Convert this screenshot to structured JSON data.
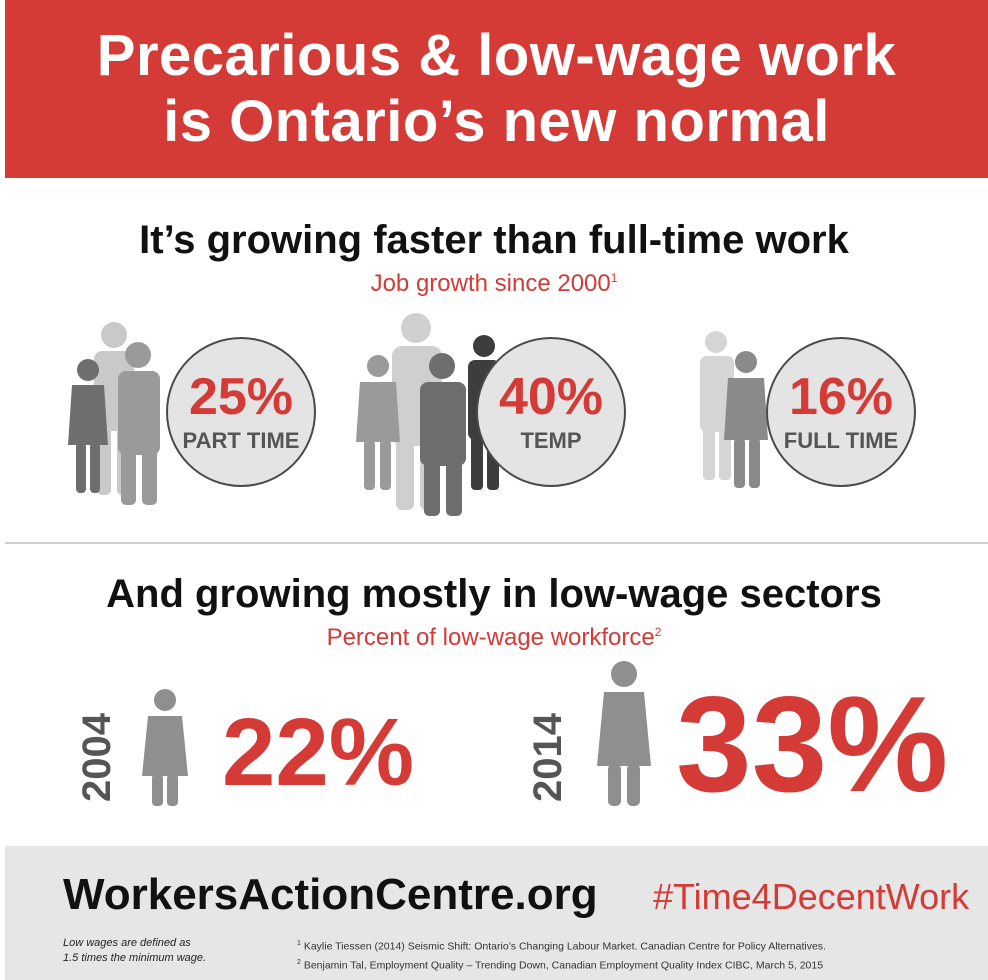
{
  "banner": {
    "line1": "Precarious & low-wage work",
    "line2": "is Ontario’s new normal"
  },
  "section1": {
    "heading": "It’s growing faster than full-time work",
    "subheading": "Job growth since 2000",
    "footnote_mark": "1",
    "stats": [
      {
        "value": "25%",
        "label": "PART TIME"
      },
      {
        "value": "40%",
        "label": "TEMP"
      },
      {
        "value": "16%",
        "label": "FULL TIME"
      }
    ]
  },
  "section2": {
    "heading": "And growing mostly in low-wage sectors",
    "subheading": "Percent of low-wage workforce",
    "footnote_mark": "2",
    "items": [
      {
        "year": "2004",
        "value": "22%"
      },
      {
        "year": "2014",
        "value": "33%"
      }
    ]
  },
  "footer": {
    "site": "WorkersActionCentre.org",
    "hashtag": "#Time4DecentWork",
    "note_line1": "Low wages are defined as",
    "note_line2": "1.5 times the minimum wage.",
    "ref1_mark": "1",
    "ref1": "Kaylie Tiessen (2014) Seismic Shift: Ontario’s Changing Labour Market. Canadian Centre for Policy Alternatives.",
    "ref2_mark": "2",
    "ref2": "Benjamin Tal, Employment Quality – Trending Down, Canadian Employment Quality Index CIBC, March 5, 2015"
  },
  "colors": {
    "red": "#d43a36",
    "dark_gray": "#555555",
    "light_gray_bg": "#e6e6e6"
  },
  "icons": [
    "person-icon",
    "person-female-icon"
  ]
}
